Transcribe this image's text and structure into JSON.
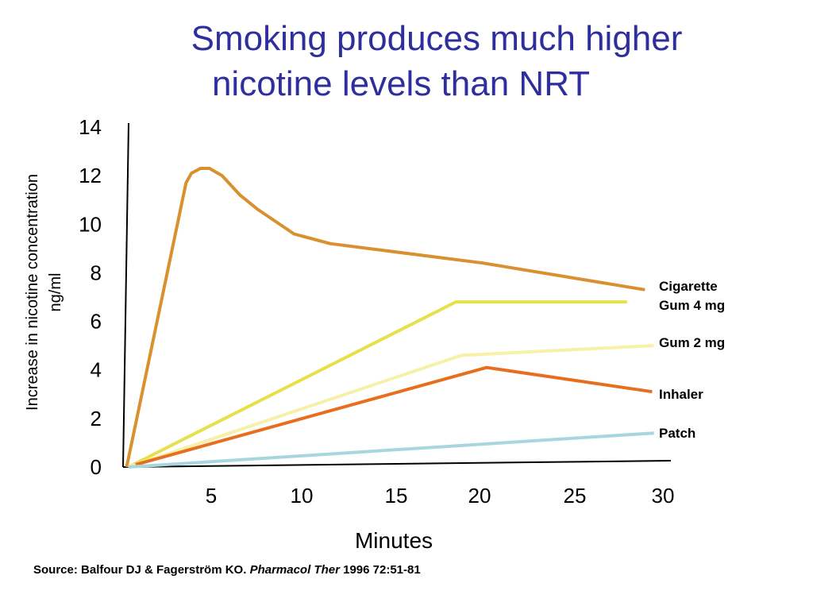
{
  "title": {
    "line1": "Smoking produces much higher",
    "line2": "nicotine levels than NRT"
  },
  "source": {
    "prefix": "Source: Balfour DJ & Fagerström KO.",
    "journal": "Pharmacol Ther",
    "suffix": "1996 72:51-81"
  },
  "chart_data": {
    "type": "line",
    "xlabel": "Minutes",
    "ylabel": [
      "Increase in nicotine concentration",
      "ng/ml"
    ],
    "x_ticks": [
      5,
      10,
      15,
      20,
      25,
      30
    ],
    "y_ticks": [
      0,
      2,
      4,
      6,
      8,
      10,
      12,
      14
    ],
    "xlim": [
      0,
      30
    ],
    "ylim": [
      0,
      14
    ],
    "grid": false,
    "legend": "right",
    "series": [
      {
        "name": "Cigarette",
        "color": "#d9902e",
        "points": [
          [
            0.2,
            0
          ],
          [
            3.5,
            11.7
          ],
          [
            3.8,
            12.1
          ],
          [
            4.3,
            12.3
          ],
          [
            4.8,
            12.3
          ],
          [
            5.5,
            12.0
          ],
          [
            6.5,
            11.2
          ],
          [
            7.5,
            10.6
          ],
          [
            9.5,
            9.6
          ],
          [
            11.5,
            9.2
          ],
          [
            20,
            8.4
          ],
          [
            29,
            7.3
          ]
        ]
      },
      {
        "name": "Gum 4 mg",
        "color": "#e6e04a",
        "points": [
          [
            0.3,
            0
          ],
          [
            18.5,
            6.8
          ],
          [
            28,
            6.8
          ]
        ]
      },
      {
        "name": "Gum 2 mg",
        "color": "#f7f0a8",
        "points": [
          [
            0.3,
            0
          ],
          [
            18.8,
            4.6
          ],
          [
            29.5,
            5.0
          ]
        ]
      },
      {
        "name": "Inhaler",
        "color": "#e86e1f",
        "points": [
          [
            0.7,
            0.1
          ],
          [
            20.2,
            4.1
          ],
          [
            29.4,
            3.1
          ]
        ]
      },
      {
        "name": "Patch",
        "color": "#a9d6de",
        "points": [
          [
            0.3,
            0
          ],
          [
            29.5,
            1.4
          ]
        ]
      }
    ]
  }
}
